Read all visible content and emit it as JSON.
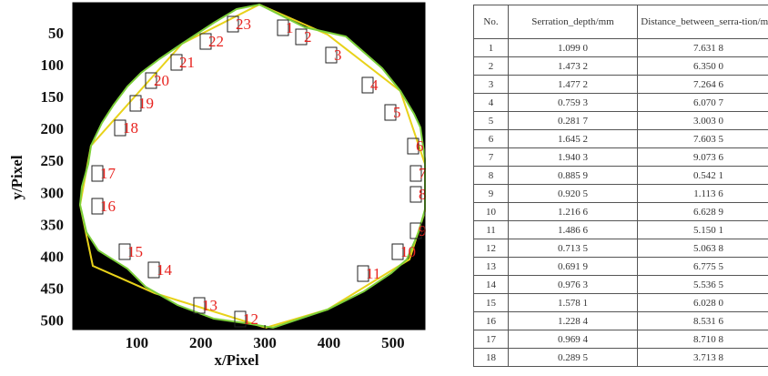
{
  "chart_data": {
    "type": "image",
    "xlabel": "x/Pixel",
    "ylabel": "y/Pixel",
    "xlim": [
      0,
      550
    ],
    "ylim": [
      0,
      512
    ],
    "xticks": [
      100,
      200,
      300,
      400,
      500
    ],
    "yticks": [
      50,
      100,
      150,
      200,
      250,
      300,
      350,
      400,
      450,
      500
    ],
    "annotations": [
      "1",
      "2",
      "3",
      "4",
      "5",
      "6",
      "7",
      "8",
      "9",
      "10",
      "11",
      "12",
      "13",
      "14",
      "15",
      "16",
      "17",
      "18",
      "19",
      "20",
      "21",
      "22",
      "23"
    ]
  },
  "table": {
    "columns": [
      "No.",
      "Serration_depth/mm",
      "Distance_between_serra-tion/mm"
    ],
    "rows": [
      [
        "1",
        "1.099 0",
        "7.631 8"
      ],
      [
        "2",
        "1.473 2",
        "6.350 0"
      ],
      [
        "3",
        "1.477 2",
        "7.264 6"
      ],
      [
        "4",
        "0.759 3",
        "6.070 7"
      ],
      [
        "5",
        "0.281 7",
        "3.003 0"
      ],
      [
        "6",
        "1.645 2",
        "7.603 5"
      ],
      [
        "7",
        "1.940 3",
        "9.073 6"
      ],
      [
        "8",
        "0.885 9",
        "0.542 1"
      ],
      [
        "9",
        "0.920 5",
        "1.113 6"
      ],
      [
        "10",
        "1.216 6",
        "6.628 9"
      ],
      [
        "11",
        "1.486 6",
        "5.150 1"
      ],
      [
        "12",
        "0.713 5",
        "5.063 8"
      ],
      [
        "13",
        "0.691 9",
        "6.775 5"
      ],
      [
        "14",
        "0.976 3",
        "5.536 5"
      ],
      [
        "15",
        "1.578 1",
        "6.028 0"
      ],
      [
        "16",
        "1.228 4",
        "8.531 6"
      ],
      [
        "17",
        "0.969 4",
        "8.710 8"
      ],
      [
        "18",
        "0.289 5",
        "3.713 8"
      ]
    ]
  }
}
